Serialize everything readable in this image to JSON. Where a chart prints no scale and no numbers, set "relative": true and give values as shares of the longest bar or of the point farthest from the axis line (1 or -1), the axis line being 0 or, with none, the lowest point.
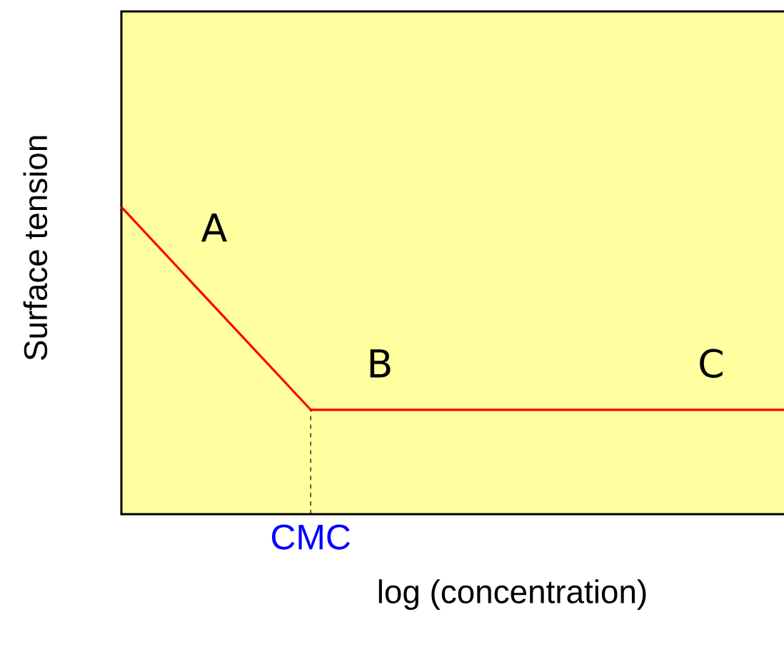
{
  "chart_data": {
    "type": "line",
    "relative": true,
    "xlabel": "log (concentration)",
    "ylabel": "Surface tension",
    "categories": [
      null,
      null,
      null,
      null,
      null,
      null,
      null,
      null
    ],
    "series": [
      {
        "color": "#ff0000",
        "values": [
          1,
          0.67,
          0.34,
          0.34,
          0.34,
          0.34,
          0.34,
          0.34
        ]
      }
    ],
    "annotations": [
      "A",
      "B",
      "C",
      "CMC"
    ]
  }
}
